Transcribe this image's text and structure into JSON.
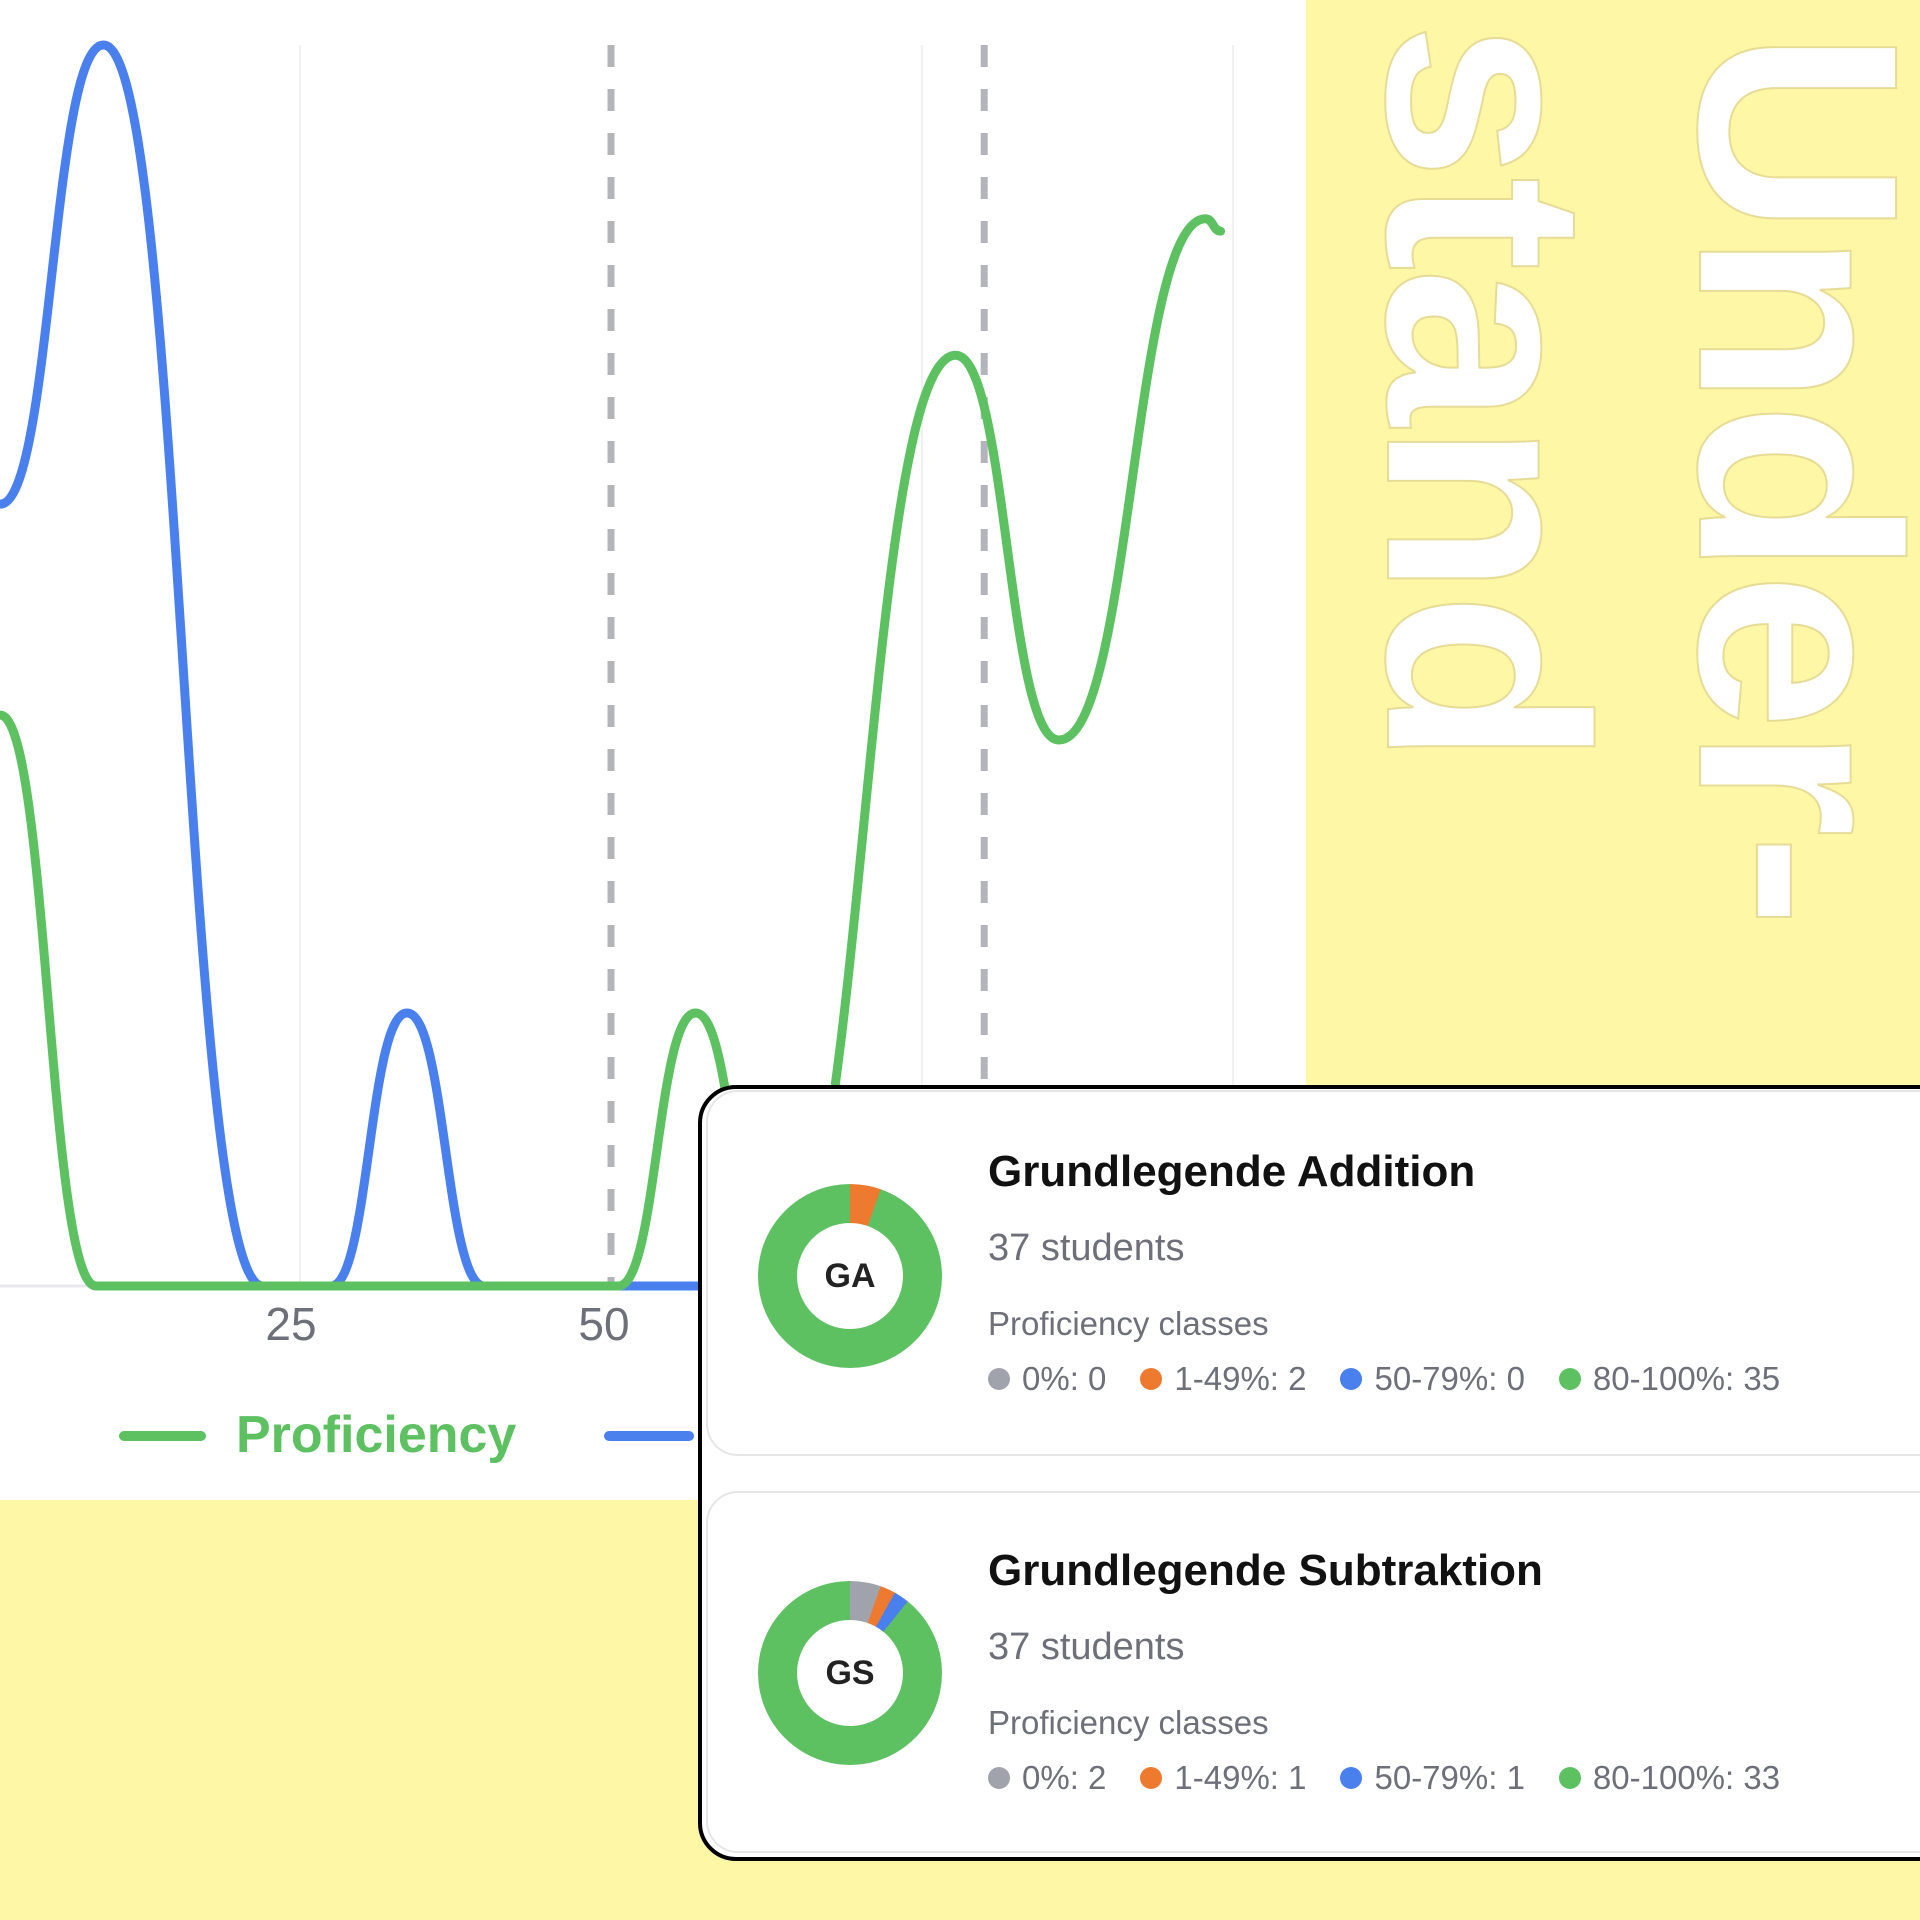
{
  "colors": {
    "green": "#5DC162",
    "blue": "#4A80EE",
    "orange": "#EE7A30",
    "gray": "#A0A3AB",
    "background": "#FEF7A6"
  },
  "headline": {
    "line1": "Under-",
    "line2": "stand"
  },
  "chart_data": {
    "type": "line",
    "x_ticks": [
      "25",
      "50"
    ],
    "xlim": [
      0,
      100
    ],
    "ylim": [
      0,
      10
    ],
    "grid_x": [
      25,
      75,
      100
    ],
    "reference_lines_x": [
      50,
      80
    ],
    "series": [
      {
        "name": "Proficiency",
        "color": "#5DC162",
        "points": [
          [
            0.9,
            4.6
          ],
          [
            8.6,
            0
          ],
          [
            50.6,
            0
          ],
          [
            56.8,
            2.2
          ],
          [
            63,
            0
          ],
          [
            77.7,
            7.5
          ],
          [
            86,
            4.4
          ],
          [
            97.8,
            8.6
          ],
          [
            99,
            8.5
          ]
        ]
      },
      {
        "color": "#4A80EE",
        "points": [
          [
            0.9,
            6.3
          ],
          [
            9.2,
            10
          ],
          [
            22,
            0
          ],
          [
            27.5,
            0
          ],
          [
            33.6,
            2.2
          ],
          [
            39.8,
            0
          ],
          [
            60,
            0
          ]
        ]
      }
    ],
    "legend": [
      "Proficiency"
    ]
  },
  "cards": [
    {
      "abbr": "GA",
      "title": "Grundlegende Addition",
      "students": "37 students",
      "classes_label": "Proficiency classes",
      "classes": [
        {
          "label": "0%: 0",
          "count": 0,
          "color": "#A0A3AB"
        },
        {
          "label": "1-49%: 2",
          "count": 2,
          "color": "#EE7A30"
        },
        {
          "label": "50-79%: 0",
          "count": 0,
          "color": "#4A80EE"
        },
        {
          "label": "80-100%: 35",
          "count": 35,
          "color": "#5DC162"
        }
      ]
    },
    {
      "abbr": "GS",
      "title": "Grundlegende Subtraktion",
      "students": "37 students",
      "classes_label": "Proficiency classes",
      "classes": [
        {
          "label": "0%: 2",
          "count": 2,
          "color": "#A0A3AB"
        },
        {
          "label": "1-49%: 1",
          "count": 1,
          "color": "#EE7A30"
        },
        {
          "label": "50-79%: 1",
          "count": 1,
          "color": "#4A80EE"
        },
        {
          "label": "80-100%: 33",
          "count": 33,
          "color": "#5DC162"
        }
      ]
    }
  ]
}
